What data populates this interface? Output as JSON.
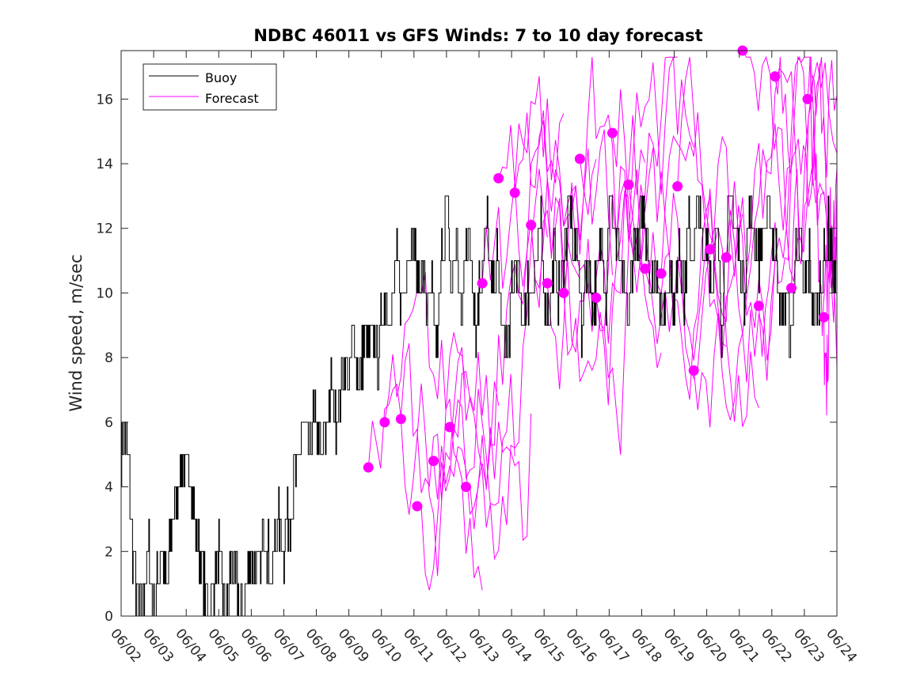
{
  "chart_data": {
    "type": "line",
    "title": "NDBC 46011 vs GFS Winds: 7 to 10 day forecast",
    "xlabel": "",
    "ylabel": "Wind speed, m/sec",
    "x_tick_labels": [
      "06/02",
      "06/03",
      "06/04",
      "06/05",
      "06/06",
      "06/07",
      "06/08",
      "06/09",
      "06/10",
      "06/11",
      "06/12",
      "06/13",
      "06/14",
      "06/15",
      "06/16",
      "06/17",
      "06/18",
      "06/19",
      "06/20",
      "06/21",
      "06/22",
      "06/23",
      "06/24"
    ],
    "xlim_days": [
      0,
      22
    ],
    "y_ticks": [
      0,
      2,
      4,
      6,
      8,
      10,
      12,
      14,
      16
    ],
    "ylim": [
      0,
      17.5
    ],
    "legend": {
      "placement": "top-left",
      "entries": [
        "Buoy",
        "Forecast"
      ]
    },
    "colors": {
      "buoy": "#000000",
      "forecast": "#ff00ff"
    },
    "series": [
      {
        "name": "Buoy",
        "comment_x": "days since 06/02",
        "x": [
          0.0,
          0.1,
          0.25,
          0.35,
          0.45,
          0.55,
          0.7,
          0.85,
          1.0,
          1.2,
          1.4,
          1.6,
          1.75,
          1.9,
          2.0,
          2.1,
          2.25,
          2.4,
          2.55,
          2.7,
          2.85,
          3.0,
          3.1,
          3.25,
          3.4,
          3.55,
          3.7,
          3.85,
          4.0,
          4.2,
          4.4,
          4.6,
          4.8,
          5.0,
          5.15,
          5.3,
          5.45,
          5.6,
          5.75,
          5.9,
          6.0,
          6.15,
          6.3,
          6.45,
          6.6,
          6.75,
          6.9,
          7.0,
          7.15,
          7.3,
          7.5,
          7.65,
          7.8,
          7.9,
          8.0,
          8.15,
          8.3,
          8.45,
          8.6,
          8.8,
          9.0,
          9.1,
          9.25,
          9.4,
          9.55,
          9.7,
          9.85,
          10.0,
          10.15,
          10.3,
          10.45,
          10.6,
          10.75,
          10.9,
          11.0,
          11.1,
          11.25,
          11.4,
          11.55,
          11.7,
          11.85,
          12.0,
          12.15,
          12.3,
          12.45,
          12.6,
          12.75,
          12.9,
          13.0,
          13.15,
          13.3,
          13.45,
          13.6,
          13.75,
          13.9,
          14.0,
          14.15,
          14.3,
          14.45,
          14.6,
          14.75,
          14.9,
          15.0,
          15.15,
          15.3,
          15.45,
          15.6,
          15.75,
          15.9,
          16.0,
          16.15,
          16.3,
          16.45,
          16.6,
          16.75,
          16.9,
          17.0,
          17.15,
          17.3,
          17.45,
          17.6,
          17.75,
          17.9,
          18.0,
          18.15,
          18.3,
          18.45,
          18.6,
          18.75,
          18.9,
          19.0,
          19.15,
          19.3,
          19.45,
          19.6,
          19.75,
          19.9,
          20.0,
          20.15,
          20.3,
          20.45,
          20.6,
          20.75,
          20.9,
          21.0,
          21.15,
          21.3,
          21.45,
          21.6,
          21.75,
          21.9,
          22.0
        ],
        "y": [
          5,
          6,
          4,
          2,
          1,
          0,
          1,
          2,
          0,
          2,
          1,
          3,
          4,
          5,
          4,
          5,
          3,
          2,
          1,
          0,
          1,
          2,
          1,
          0,
          2,
          1,
          0,
          1,
          2,
          1,
          3,
          1,
          3,
          2,
          3,
          4,
          5,
          6,
          5,
          6,
          6,
          5,
          6,
          7,
          6,
          7,
          8,
          7,
          9,
          7,
          9,
          8,
          9,
          8,
          9,
          10,
          9,
          11,
          10,
          11,
          12,
          10,
          11,
          9,
          10,
          8,
          11,
          13,
          10,
          12,
          9,
          12,
          11,
          9,
          10,
          11,
          12,
          10,
          11,
          9,
          8,
          10,
          11,
          9,
          10,
          10,
          11,
          12,
          10,
          9,
          11,
          10,
          11,
          13,
          11,
          12,
          9,
          11,
          10,
          10,
          12,
          10,
          13,
          12,
          11,
          10,
          9,
          12,
          11,
          13,
          12,
          10,
          11,
          9,
          10,
          11,
          9,
          12,
          10,
          12,
          11,
          13,
          11,
          12,
          10,
          12,
          9,
          12,
          13,
          12,
          11,
          10,
          13,
          12,
          11,
          12,
          13,
          12,
          11,
          9,
          10,
          8,
          12,
          11,
          10,
          11,
          9,
          10,
          11,
          12,
          10,
          11
        ],
        "note": "values approximate; buoy trace is a dense step series"
      },
      {
        "name": "Forecast",
        "markers": {
          "comment_x": "days since 06/02 of each forecast trace start",
          "x": [
            7.6,
            8.1,
            8.6,
            9.1,
            9.6,
            10.1,
            10.6,
            11.1,
            11.6,
            12.1,
            12.6,
            13.1,
            13.6,
            14.1,
            14.6,
            15.1,
            15.6,
            16.1,
            16.6,
            17.1,
            17.6,
            18.1,
            18.6,
            19.1,
            19.6,
            20.1,
            20.6,
            21.1,
            21.6
          ],
          "y": [
            4.6,
            6.0,
            6.1,
            3.4,
            4.8,
            5.85,
            4.0,
            10.3,
            13.55,
            13.1,
            12.1,
            10.3,
            10.0,
            14.15,
            9.85,
            14.95,
            13.35,
            10.75,
            10.6,
            13.3,
            7.6,
            11.35,
            11.1,
            17.5,
            9.6,
            16.7,
            10.15,
            16.0,
            9.25
          ]
        },
        "note": "multiple overlapping forecast traces; each starts at a marker and runs for ~3 days"
      }
    ]
  }
}
